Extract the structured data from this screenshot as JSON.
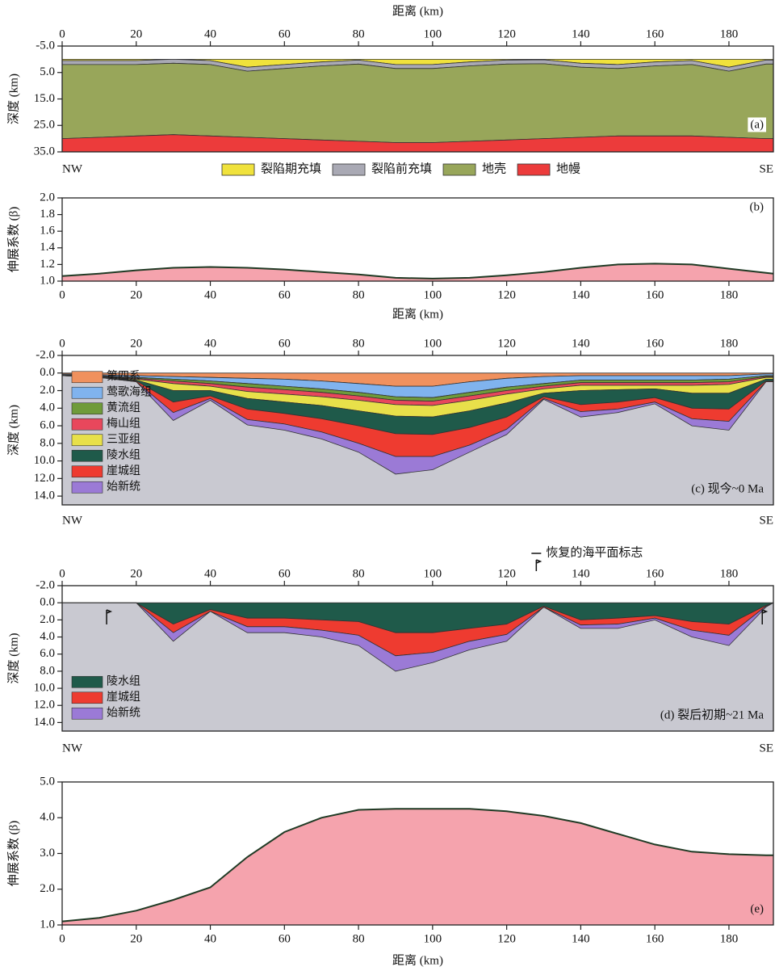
{
  "chart_data": [
    {
      "type": "section",
      "x_label": "距离 (km)",
      "y_label": "深度 (km)",
      "x": [
        0,
        10,
        20,
        30,
        40,
        50,
        60,
        70,
        80,
        90,
        100,
        110,
        120,
        130,
        140,
        150,
        160,
        170,
        180,
        190,
        192
      ],
      "xlim": [
        0,
        192
      ],
      "xticks": [
        0,
        20,
        40,
        60,
        80,
        100,
        120,
        140,
        160,
        180
      ],
      "ylim": [
        -5,
        35
      ],
      "y_inverted": true,
      "yticks": [
        {
          "value": -5,
          "label": "-5.0"
        },
        {
          "value": 5,
          "label": "5.0"
        },
        {
          "value": 15,
          "label": "15.0"
        },
        {
          "value": 25,
          "label": "25.0"
        },
        {
          "value": 35,
          "label": "35.0"
        }
      ],
      "left_label": "NW",
      "right_label": "SE",
      "panel_label": "(a)",
      "legend": "bottom",
      "series": [
        {
          "name": "裂陷期充填",
          "color": "#f0e23c",
          "values": [
            0.5,
            0.5,
            0.5,
            0,
            0.5,
            3,
            2,
            1,
            0.3,
            2,
            2,
            1,
            0.3,
            0.2,
            1.5,
            2,
            1,
            0.5,
            3,
            0.3,
            0.3
          ]
        },
        {
          "name": "裂陷前充填",
          "color": "#a9a9b4",
          "values": [
            1.5,
            1.5,
            1.5,
            1.5,
            1.5,
            1.5,
            1.5,
            1.5,
            1.5,
            1.5,
            1.5,
            1.5,
            1.5,
            1.5,
            1.5,
            1.5,
            1.5,
            1.5,
            1.5,
            1.5,
            1.5
          ]
        },
        {
          "name": "地壳",
          "color": "#98a65a",
          "values": [
            28,
            27.5,
            27,
            27,
            27,
            25,
            26.5,
            28,
            29.2,
            28,
            28,
            28.5,
            28.7,
            28.3,
            26.5,
            25.5,
            26.5,
            27,
            25,
            28.2,
            28.2
          ]
        },
        {
          "name": "地幔",
          "color": "#ec3b3b",
          "values": [
            5,
            5.5,
            6,
            6.5,
            6,
            5.5,
            5,
            4.5,
            4,
            3.5,
            3.5,
            4,
            4.5,
            5,
            5.5,
            6,
            6,
            6,
            5.5,
            5,
            5
          ]
        }
      ]
    },
    {
      "type": "area",
      "x_label": "距离 (km)",
      "y_label": "伸展系数 (β)",
      "x": [
        0,
        10,
        20,
        30,
        40,
        50,
        60,
        70,
        80,
        90,
        100,
        110,
        120,
        130,
        140,
        150,
        160,
        170,
        180,
        190,
        192
      ],
      "xlim": [
        0,
        192
      ],
      "xticks": [
        0,
        20,
        40,
        60,
        80,
        100,
        120,
        140,
        160,
        180
      ],
      "ylim": [
        1,
        2
      ],
      "yticks": [
        {
          "value": 1,
          "label": "1.0"
        },
        {
          "value": 1.2,
          "label": "1.2"
        },
        {
          "value": 1.4,
          "label": "1.4"
        },
        {
          "value": 1.6,
          "label": "1.6"
        },
        {
          "value": 1.8,
          "label": "1.8"
        },
        {
          "value": 2,
          "label": "2.0"
        }
      ],
      "panel_label": "(b)",
      "color": "#f5a3ad",
      "values": [
        1.06,
        1.09,
        1.13,
        1.16,
        1.17,
        1.16,
        1.14,
        1.11,
        1.08,
        1.04,
        1.03,
        1.04,
        1.07,
        1.11,
        1.16,
        1.2,
        1.21,
        1.2,
        1.15,
        1.1,
        1.09
      ]
    },
    {
      "type": "section",
      "y_label": "深度 (km)",
      "x": [
        0,
        10,
        20,
        30,
        40,
        50,
        60,
        70,
        80,
        90,
        100,
        110,
        120,
        130,
        140,
        150,
        160,
        170,
        180,
        190,
        192
      ],
      "xlim": [
        0,
        192
      ],
      "xticks": [
        0,
        20,
        40,
        60,
        80,
        100,
        120,
        140,
        160,
        180
      ],
      "ylim": [
        -2,
        15
      ],
      "y_inverted": true,
      "yticks": [
        {
          "value": -2,
          "label": "-2.0"
        },
        {
          "value": 0,
          "label": "0.0"
        },
        {
          "value": 2,
          "label": "2.0"
        },
        {
          "value": 4,
          "label": "4.0"
        },
        {
          "value": 6,
          "label": "6.0"
        },
        {
          "value": 8,
          "label": "8.0"
        },
        {
          "value": 10,
          "label": "10.0"
        },
        {
          "value": 12,
          "label": "12.0"
        },
        {
          "value": 14,
          "label": "14.0"
        }
      ],
      "left_label": "NW",
      "right_label": "SE",
      "panel_label": "(c) 现今~0 Ma",
      "legend": "lower left",
      "series": [
        {
          "name": "第四系",
          "color": "#f0915e",
          "values": [
            0.1,
            0.2,
            0.3,
            0.4,
            0.5,
            0.6,
            0.7,
            0.9,
            1.2,
            1.5,
            1.5,
            1.0,
            0.6,
            0.4,
            0.3,
            0.3,
            0.3,
            0.3,
            0.3,
            0.1,
            0.1
          ]
        },
        {
          "name": "莺歌海组",
          "color": "#80b3ee",
          "values": [
            0.1,
            0.1,
            0.2,
            0.3,
            0.4,
            0.6,
            0.8,
            0.9,
            1.0,
            1.2,
            1.3,
            1.2,
            1.0,
            0.8,
            0.5,
            0.5,
            0.5,
            0.5,
            0.4,
            0.2,
            0.2
          ]
        },
        {
          "name": "黄流组",
          "color": "#6f9b3a",
          "values": [
            0.05,
            0.05,
            0.1,
            0.2,
            0.3,
            0.4,
            0.4,
            0.4,
            0.4,
            0.4,
            0.4,
            0.4,
            0.4,
            0.3,
            0.3,
            0.3,
            0.3,
            0.3,
            0.3,
            0.1,
            0.1
          ]
        },
        {
          "name": "梅山组",
          "color": "#e8475c",
          "values": [
            0.05,
            0.05,
            0.1,
            0.3,
            0.3,
            0.5,
            0.5,
            0.5,
            0.5,
            0.5,
            0.5,
            0.5,
            0.4,
            0.3,
            0.3,
            0.3,
            0.3,
            0.3,
            0.3,
            0.1,
            0.1
          ]
        },
        {
          "name": "三亚组",
          "color": "#e8e04a",
          "values": [
            0,
            0.05,
            0.1,
            0.8,
            0.5,
            0.8,
            0.9,
            1.0,
            1.2,
            1.3,
            1.3,
            1.2,
            1.0,
            0.5,
            0.6,
            0.5,
            0.4,
            0.9,
            1.0,
            0.2,
            0.2
          ]
        },
        {
          "name": "陵水组",
          "color": "#1f5a4a",
          "values": [
            0,
            0.05,
            0.1,
            1.3,
            0.6,
            1.2,
            1.3,
            1.5,
            1.7,
            2.0,
            2.0,
            1.9,
            1.6,
            0.4,
            1.6,
            1.4,
            1.0,
            1.7,
            1.8,
            0.2,
            0.2
          ]
        },
        {
          "name": "崖城组",
          "color": "#ee3b30",
          "values": [
            0,
            0,
            0.1,
            1.2,
            0.3,
            1.2,
            1.2,
            1.5,
            2.0,
            2.6,
            2.5,
            2.0,
            1.4,
            0.2,
            0.8,
            0.8,
            0.5,
            1.2,
            1.4,
            0.1,
            0.1
          ]
        },
        {
          "name": "始新统",
          "color": "#9b7ad6",
          "values": [
            0,
            0,
            0,
            0.9,
            0.2,
            0.6,
            0.7,
            0.8,
            1.0,
            2.0,
            1.5,
            0.8,
            0.6,
            0.1,
            0.6,
            0.4,
            0.2,
            0.8,
            1.0,
            0,
            0
          ]
        }
      ]
    },
    {
      "type": "section",
      "y_label": "深度 (km)",
      "annotation": "恢复的海平面标志",
      "x": [
        0,
        10,
        20,
        30,
        40,
        50,
        60,
        70,
        80,
        90,
        100,
        110,
        120,
        130,
        140,
        150,
        160,
        170,
        180,
        190,
        192
      ],
      "xlim": [
        0,
        192
      ],
      "xticks": [
        0,
        20,
        40,
        60,
        80,
        100,
        120,
        140,
        160,
        180
      ],
      "ylim": [
        -2,
        15
      ],
      "y_inverted": true,
      "yticks": [
        {
          "value": -2,
          "label": "-2.0"
        },
        {
          "value": 0,
          "label": "0.0"
        },
        {
          "value": 2,
          "label": "2.0"
        },
        {
          "value": 4,
          "label": "4.0"
        },
        {
          "value": 6,
          "label": "6.0"
        },
        {
          "value": 8,
          "label": "8.0"
        },
        {
          "value": 10,
          "label": "10.0"
        },
        {
          "value": 12,
          "label": "12.0"
        },
        {
          "value": 14,
          "label": "14.0"
        }
      ],
      "left_label": "NW",
      "right_label": "SE",
      "panel_label": "(d) 裂后初期~21 Ma",
      "legend": "lower left",
      "series": [
        {
          "name": "陵水组",
          "color": "#1f5a4a",
          "values": [
            0,
            0,
            0,
            2.5,
            0.8,
            1.8,
            1.8,
            2,
            2.2,
            3.5,
            3.5,
            3,
            2.5,
            0.4,
            2,
            1.8,
            1.5,
            2.2,
            2.5,
            0.3,
            0
          ]
        },
        {
          "name": "崖城组",
          "color": "#ee3b30",
          "values": [
            0,
            0,
            0,
            1,
            0.2,
            1,
            1,
            1.2,
            1.6,
            2.7,
            2.3,
            1.5,
            1.2,
            0.1,
            0.6,
            0.7,
            0.3,
            1,
            1.3,
            0.1,
            0
          ]
        },
        {
          "name": "始新统",
          "color": "#9b7ad6",
          "values": [
            0,
            0,
            0,
            1,
            0,
            0.7,
            0.7,
            0.8,
            1.2,
            1.8,
            1.2,
            1,
            0.8,
            0,
            0.4,
            0.5,
            0.2,
            0.8,
            1.2,
            0.1,
            0
          ]
        }
      ]
    },
    {
      "type": "area",
      "x_label": "距离 (km)",
      "y_label": "伸展系数 (β)",
      "x": [
        0,
        10,
        20,
        30,
        40,
        50,
        60,
        70,
        80,
        90,
        100,
        110,
        120,
        130,
        140,
        150,
        160,
        170,
        180,
        190,
        192
      ],
      "xlim": [
        0,
        192
      ],
      "xticks": [
        0,
        20,
        40,
        60,
        80,
        100,
        120,
        140,
        160,
        180
      ],
      "ylim": [
        1,
        5
      ],
      "yticks": [
        {
          "value": 1,
          "label": "1.0"
        },
        {
          "value": 2,
          "label": "2.0"
        },
        {
          "value": 3,
          "label": "3.0"
        },
        {
          "value": 4,
          "label": "4.0"
        },
        {
          "value": 5,
          "label": "5.0"
        }
      ],
      "panel_label": "(e)",
      "color": "#f5a3ad",
      "values": [
        1.1,
        1.2,
        1.4,
        1.7,
        2.05,
        2.9,
        3.6,
        4.0,
        4.22,
        4.25,
        4.25,
        4.25,
        4.18,
        4.05,
        3.85,
        3.55,
        3.25,
        3.05,
        2.98,
        2.95,
        2.95
      ]
    }
  ]
}
